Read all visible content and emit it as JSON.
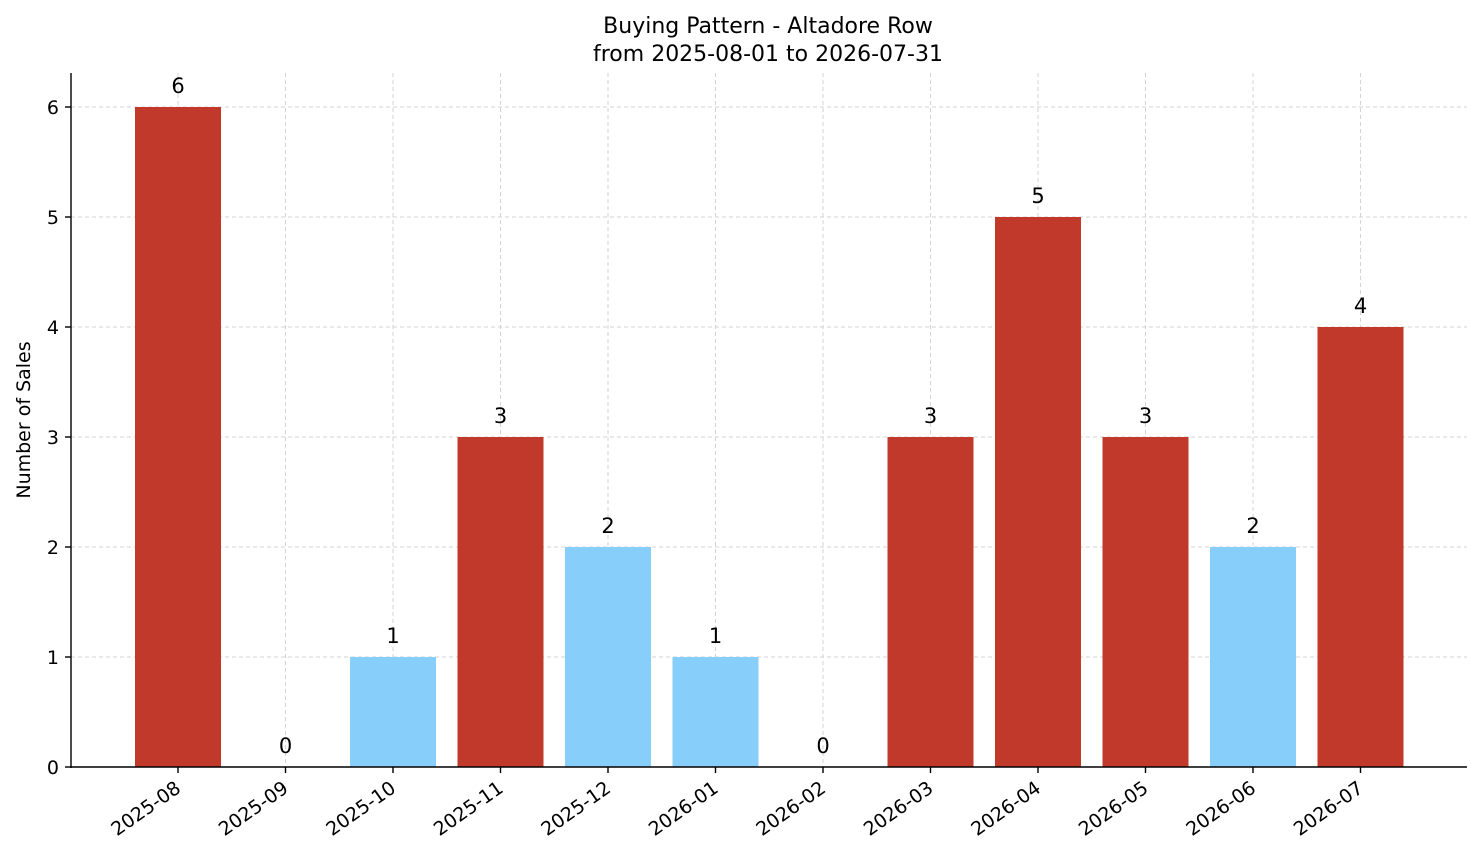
{
  "chart_data": {
    "type": "bar",
    "title": "Buying Pattern - Altadore Row",
    "subtitle": "from 2025-08-01 to 2026-07-31",
    "xlabel": "",
    "ylabel": "Number of Sales",
    "categories": [
      "2025-08",
      "2025-09",
      "2025-10",
      "2025-11",
      "2025-12",
      "2026-01",
      "2026-02",
      "2026-03",
      "2026-04",
      "2026-05",
      "2026-06",
      "2026-07"
    ],
    "values": [
      6,
      0,
      1,
      3,
      2,
      1,
      0,
      3,
      5,
      3,
      2,
      4
    ],
    "data_labels": [
      "6",
      "0",
      "1",
      "3",
      "2",
      "1",
      "0",
      "3",
      "5",
      "3",
      "2",
      "4"
    ],
    "bar_colors": [
      "#c0392b",
      "#c0392b",
      "#87cefa",
      "#c0392b",
      "#87cefa",
      "#87cefa",
      "#c0392b",
      "#c0392b",
      "#c0392b",
      "#c0392b",
      "#87cefa",
      "#c0392b"
    ],
    "yticks": [
      0,
      1,
      2,
      3,
      4,
      5,
      6
    ],
    "ytick_labels": [
      "0",
      "1",
      "2",
      "3",
      "4",
      "5",
      "6"
    ],
    "ylim": [
      0,
      6.3
    ],
    "grid": true,
    "colors": {
      "high": "#c0392b",
      "low": "#87cefa"
    }
  }
}
